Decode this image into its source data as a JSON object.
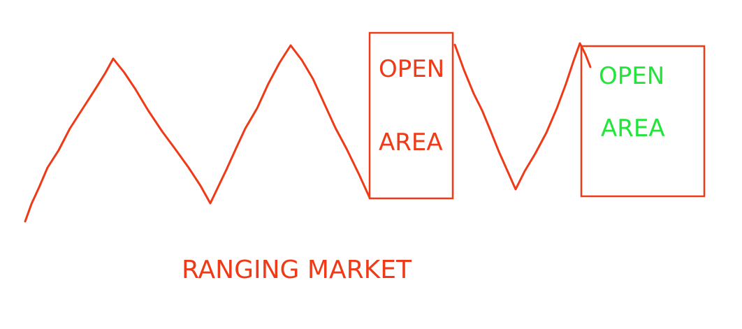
{
  "colors": {
    "red": "#f03a17",
    "green": "#22e53a",
    "background": "#ffffff"
  },
  "boxes": [
    {
      "line1": "OPEN",
      "line2": "AREA",
      "text_color": "red"
    },
    {
      "line1": "OPEN",
      "line2": "AREA",
      "text_color": "green"
    }
  ],
  "caption": "RANGING MARKET"
}
